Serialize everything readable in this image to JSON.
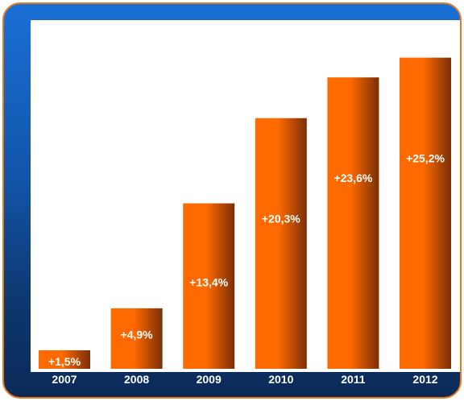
{
  "chart_data": {
    "type": "bar",
    "categories": [
      "2007",
      "2008",
      "2009",
      "2010",
      "2011",
      "2012"
    ],
    "values": [
      1.5,
      4.9,
      13.4,
      20.3,
      23.6,
      25.2
    ],
    "data_labels": [
      "+1,5%",
      "+4,9%",
      "+13,4%",
      "+20,3%",
      "+23,6%",
      "+25,2%"
    ],
    "ylim": [
      0,
      28.5
    ],
    "grid": false,
    "colors": {
      "bar_light": "#ff6a00",
      "bar_dark": "#7a2e08",
      "frame_border": "#e8781e",
      "frame_top": "#1a6fd6",
      "frame_bottom": "#0b2a58"
    }
  }
}
